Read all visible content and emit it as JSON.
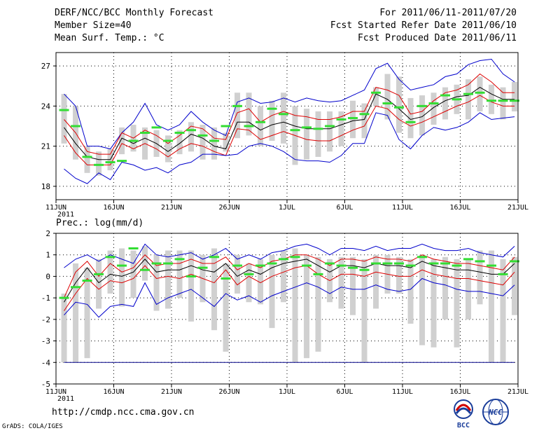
{
  "header": {
    "title": "DERF/NCC/BCC Monthly Forecast",
    "member_size": "Member Size=40",
    "variable": "Mean Surf. Temp.: °C",
    "period": "For 2011/06/11-2011/07/20",
    "fcst_started": "Fcst Started Refer Date 2011/06/10",
    "fcst_produced": "Fcst Produced Date 2011/06/11"
  },
  "footer": {
    "url": "http://cmdp.ncc.cma.gov.cn",
    "grads": "GrADS: COLA/IGES",
    "logo_bcc": "BCC",
    "logo_ncc": "NCC"
  },
  "colors": {
    "envelope": "#0000cc",
    "spread": "#dd0000",
    "mean": "#000000",
    "median": "#33dd33",
    "box": "#d0d0d0",
    "grid": "#000000",
    "baseline": "#000088"
  },
  "chart_data": [
    {
      "type": "line",
      "title": "Mean Surf. Temp.: °C",
      "x_tick_labels": [
        "11JUN",
        "16JUN",
        "21JUN",
        "26JUN",
        "1JUL",
        "6JUL",
        "11JUL",
        "16JUL",
        "21JUL"
      ],
      "year_label": "2011",
      "x_tick_days": [
        0,
        5,
        10,
        15,
        20,
        25,
        30,
        35,
        40
      ],
      "xlim": [
        0,
        40
      ],
      "ylim": [
        17,
        28
      ],
      "y_ticks": [
        18,
        21,
        24,
        27
      ],
      "days": [
        0,
        1,
        2,
        3,
        4,
        5,
        6,
        7,
        8,
        9,
        10,
        11,
        12,
        13,
        14,
        15,
        16,
        17,
        18,
        19,
        20,
        21,
        22,
        23,
        24,
        25,
        26,
        27,
        28,
        29,
        30,
        31,
        32,
        33,
        34,
        35,
        36,
        37,
        38,
        39
      ],
      "series": [
        {
          "name": "max",
          "values": [
            24.9,
            24.0,
            21.0,
            21.0,
            20.8,
            22.0,
            22.8,
            24.2,
            22.6,
            22.2,
            22.6,
            23.6,
            22.8,
            22.2,
            21.8,
            24.3,
            24.6,
            24.2,
            24.3,
            24.6,
            24.3,
            24.6,
            24.4,
            24.3,
            24.4,
            24.8,
            25.2,
            26.8,
            27.2,
            26.0,
            25.2,
            25.4,
            25.6,
            26.2,
            26.4,
            27.1,
            27.4,
            27.5,
            26.4,
            25.8
          ]
        },
        {
          "name": "upper",
          "values": [
            23.0,
            22.0,
            20.6,
            20.4,
            20.4,
            22.0,
            21.6,
            22.2,
            21.8,
            21.2,
            21.8,
            22.5,
            22.3,
            21.6,
            21.5,
            23.5,
            23.8,
            22.8,
            23.3,
            23.6,
            23.3,
            23.2,
            23.0,
            23.0,
            23.2,
            23.6,
            23.6,
            25.4,
            25.2,
            24.8,
            23.4,
            23.6,
            24.4,
            25.0,
            25.2,
            25.6,
            26.4,
            25.8,
            25.0,
            25.0
          ]
        },
        {
          "name": "mean",
          "values": [
            22.4,
            21.2,
            20.2,
            20.0,
            20.0,
            21.6,
            21.2,
            21.6,
            21.2,
            20.6,
            21.2,
            21.9,
            21.6,
            21.0,
            20.8,
            22.8,
            22.8,
            22.2,
            22.6,
            22.8,
            22.5,
            22.3,
            22.3,
            22.3,
            22.6,
            22.9,
            23.0,
            24.9,
            24.5,
            23.8,
            23.0,
            23.2,
            23.9,
            24.4,
            24.7,
            24.8,
            25.4,
            24.9,
            24.5,
            24.5
          ]
        },
        {
          "name": "lower",
          "values": [
            21.8,
            20.5,
            19.6,
            19.6,
            19.6,
            21.2,
            20.8,
            21.2,
            20.8,
            20.2,
            20.8,
            21.2,
            21.0,
            20.6,
            20.3,
            22.3,
            22.2,
            21.5,
            21.8,
            22.1,
            21.8,
            21.5,
            21.4,
            21.4,
            21.8,
            22.2,
            22.5,
            24.0,
            23.8,
            23.0,
            22.5,
            22.8,
            23.2,
            23.6,
            24.0,
            24.3,
            24.8,
            24.3,
            24.0,
            24.0
          ]
        },
        {
          "name": "min",
          "values": [
            19.3,
            18.6,
            18.2,
            19.0,
            18.5,
            19.8,
            19.6,
            19.2,
            19.4,
            19.0,
            19.6,
            19.8,
            20.4,
            20.4,
            20.3,
            20.4,
            21.0,
            21.2,
            21.0,
            20.6,
            20.0,
            19.9,
            19.9,
            19.8,
            20.3,
            21.2,
            21.2,
            23.5,
            23.3,
            21.5,
            20.8,
            21.8,
            22.4,
            22.2,
            22.4,
            22.8,
            23.5,
            23.0,
            23.1,
            23.2
          ]
        }
      ],
      "box_ranges": [
        [
          21.2,
          24.9
        ],
        [
          20.0,
          24.0
        ],
        [
          19.0,
          21.0
        ],
        [
          18.8,
          20.6
        ],
        [
          19.2,
          20.8
        ],
        [
          20.4,
          22.4
        ],
        [
          20.6,
          22.6
        ],
        [
          20.0,
          22.4
        ],
        [
          20.2,
          22.2
        ],
        [
          19.8,
          21.8
        ],
        [
          20.4,
          22.2
        ],
        [
          20.6,
          22.8
        ],
        [
          20.0,
          22.6
        ],
        [
          20.0,
          22.4
        ],
        [
          20.6,
          22.0
        ],
        [
          21.6,
          25.0
        ],
        [
          21.8,
          25.0
        ],
        [
          21.0,
          24.0
        ],
        [
          21.4,
          24.4
        ],
        [
          21.2,
          25.0
        ],
        [
          19.6,
          24.0
        ],
        [
          20.0,
          23.8
        ],
        [
          20.2,
          23.6
        ],
        [
          20.6,
          23.6
        ],
        [
          21.0,
          23.6
        ],
        [
          21.6,
          24.4
        ],
        [
          21.6,
          24.2
        ],
        [
          24.0,
          25.4
        ],
        [
          23.0,
          26.4
        ],
        [
          22.0,
          26.2
        ],
        [
          21.6,
          24.6
        ],
        [
          21.8,
          24.8
        ],
        [
          22.6,
          25.0
        ],
        [
          23.0,
          25.4
        ],
        [
          23.4,
          25.6
        ],
        [
          23.0,
          26.0
        ],
        [
          23.6,
          26.2
        ],
        [
          23.4,
          25.6
        ],
        [
          23.0,
          25.4
        ],
        [
          23.6,
          25.8
        ]
      ],
      "median": [
        23.7,
        22.5,
        20.2,
        19.6,
        19.8,
        19.9,
        21.4,
        22.0,
        22.4,
        21.4,
        22.0,
        22.2,
        21.8,
        21.4,
        22.5,
        24.0,
        22.5,
        22.8,
        23.8,
        23.4,
        22.2,
        22.4,
        22.3,
        22.5,
        23.0,
        23.1,
        23.4,
        25.0,
        24.2,
        23.9,
        22.8,
        24.0,
        24.2,
        24.8,
        24.5,
        24.9,
        25.0,
        24.4,
        24.4,
        24.4
      ]
    },
    {
      "type": "line",
      "title": "Prec.: log(mm/d)",
      "x_tick_labels": [
        "11JUN",
        "16JUN",
        "21JUN",
        "26JUN",
        "1JUL",
        "6JUL",
        "11JUL",
        "16JUL",
        "21JUL"
      ],
      "year_label": "2011",
      "x_tick_days": [
        0,
        5,
        10,
        15,
        20,
        25,
        30,
        35,
        40
      ],
      "xlim": [
        0,
        40
      ],
      "ylim": [
        -5,
        2
      ],
      "y_ticks": [
        -5,
        -4,
        -3,
        -2,
        -1,
        0,
        1,
        2
      ],
      "baseline": -4,
      "series": [
        {
          "name": "max",
          "values": [
            0.4,
            0.8,
            1.0,
            0.7,
            1.0,
            0.8,
            0.6,
            1.5,
            1.0,
            0.9,
            1.0,
            1.1,
            0.8,
            1.0,
            1.3,
            0.8,
            1.0,
            0.8,
            1.1,
            1.2,
            1.4,
            1.5,
            1.3,
            1.0,
            1.3,
            1.3,
            1.2,
            1.4,
            1.2,
            1.3,
            1.3,
            1.5,
            1.3,
            1.2,
            1.2,
            1.3,
            1.1,
            1.0,
            0.9,
            1.4
          ]
        },
        {
          "name": "upper",
          "values": [
            -1.0,
            0.2,
            0.7,
            0.0,
            0.6,
            0.2,
            0.4,
            1.0,
            0.5,
            0.6,
            0.6,
            0.8,
            0.6,
            0.6,
            0.9,
            0.3,
            0.6,
            0.4,
            0.7,
            0.8,
            1.0,
            1.0,
            0.8,
            0.5,
            0.8,
            0.8,
            0.7,
            0.9,
            0.8,
            0.8,
            0.7,
            1.0,
            0.8,
            0.7,
            0.6,
            0.6,
            0.5,
            0.4,
            0.3,
            0.9
          ]
        },
        {
          "name": "mean",
          "values": [
            -1.2,
            -0.3,
            0.4,
            -0.3,
            0.1,
            0.0,
            0.2,
            0.8,
            0.2,
            0.3,
            0.3,
            0.5,
            0.3,
            0.2,
            0.6,
            0.0,
            0.3,
            0.1,
            0.4,
            0.6,
            0.7,
            0.8,
            0.5,
            0.2,
            0.5,
            0.5,
            0.4,
            0.6,
            0.5,
            0.5,
            0.4,
            0.7,
            0.5,
            0.4,
            0.3,
            0.3,
            0.2,
            0.1,
            0.1,
            0.6
          ]
        },
        {
          "name": "lower",
          "values": [
            -1.6,
            -0.8,
            -0.1,
            -0.6,
            -0.2,
            -0.3,
            -0.1,
            0.5,
            -0.1,
            0.0,
            -0.1,
            0.1,
            -0.1,
            -0.3,
            0.3,
            -0.4,
            0.0,
            -0.3,
            0.0,
            0.2,
            0.4,
            0.5,
            0.1,
            -0.2,
            0.1,
            0.1,
            0.0,
            0.2,
            0.1,
            0.0,
            0.0,
            0.3,
            0.1,
            0.0,
            -0.1,
            -0.1,
            -0.2,
            -0.3,
            -0.4,
            0.2
          ]
        },
        {
          "name": "min",
          "values": [
            -1.8,
            -1.2,
            -1.3,
            -1.9,
            -1.4,
            -1.3,
            -1.4,
            -0.3,
            -1.3,
            -1.0,
            -0.8,
            -0.6,
            -1.0,
            -1.4,
            -0.8,
            -1.1,
            -0.9,
            -1.2,
            -0.9,
            -0.7,
            -0.5,
            -0.3,
            -0.5,
            -0.8,
            -0.5,
            -0.6,
            -0.6,
            -0.4,
            -0.6,
            -0.7,
            -0.6,
            -0.1,
            -0.3,
            -0.4,
            -0.6,
            -0.7,
            -0.7,
            -0.8,
            -0.9,
            -0.4
          ]
        },
        {
          "name": "median",
          "values": [
            -1.0,
            -0.5,
            -0.2,
            0.1,
            0.9,
            0.5,
            1.3,
            0.3,
            0.6,
            0.6,
            0.8,
            0.0,
            0.4,
            0.9,
            -0.1,
            0.5,
            0.1,
            0.5,
            0.6,
            0.8,
            0.9,
            0.5,
            0.1,
            0.6,
            0.5,
            0.4,
            0.3,
            0.6,
            0.6,
            0.6,
            0.5,
            0.9,
            0.6,
            0.6,
            0.5,
            0.8,
            0.7,
            0.5,
            0.1,
            0.7
          ]
        }
      ],
      "box_ranges": [
        [
          -4.0,
          -0.8
        ],
        [
          -4.0,
          0.6
        ],
        [
          -3.8,
          0.4
        ],
        [
          -1.5,
          0.8
        ],
        [
          -0.8,
          1.2
        ],
        [
          -1.4,
          1.3
        ],
        [
          -1.0,
          1.2
        ],
        [
          -0.2,
          1.4
        ],
        [
          -1.6,
          1.0
        ],
        [
          -1.5,
          1.2
        ],
        [
          -1.0,
          1.2
        ],
        [
          -2.1,
          1.2
        ],
        [
          -1.2,
          1.0
        ],
        [
          -2.5,
          1.3
        ],
        [
          -3.5,
          0.6
        ],
        [
          -0.8,
          1.0
        ],
        [
          -1.2,
          0.6
        ],
        [
          -1.3,
          0.8
        ],
        [
          -2.4,
          1.0
        ],
        [
          -1.2,
          1.2
        ],
        [
          -4.0,
          1.3
        ],
        [
          -3.8,
          1.0
        ],
        [
          -3.5,
          0.9
        ],
        [
          -1.2,
          0.8
        ],
        [
          -1.5,
          0.9
        ],
        [
          -1.8,
          0.9
        ],
        [
          -4.0,
          0.8
        ],
        [
          -1.5,
          1.0
        ],
        [
          -0.8,
          1.0
        ],
        [
          -0.8,
          0.9
        ],
        [
          -2.2,
          0.8
        ],
        [
          -3.2,
          1.0
        ],
        [
          -3.3,
          0.8
        ],
        [
          -2.0,
          0.9
        ],
        [
          -3.3,
          0.8
        ],
        [
          -2.0,
          0.8
        ],
        [
          -1.3,
          1.2
        ],
        [
          -4.0,
          1.2
        ],
        [
          -4.0,
          0.8
        ],
        [
          -1.8,
          0.9
        ]
      ]
    }
  ]
}
